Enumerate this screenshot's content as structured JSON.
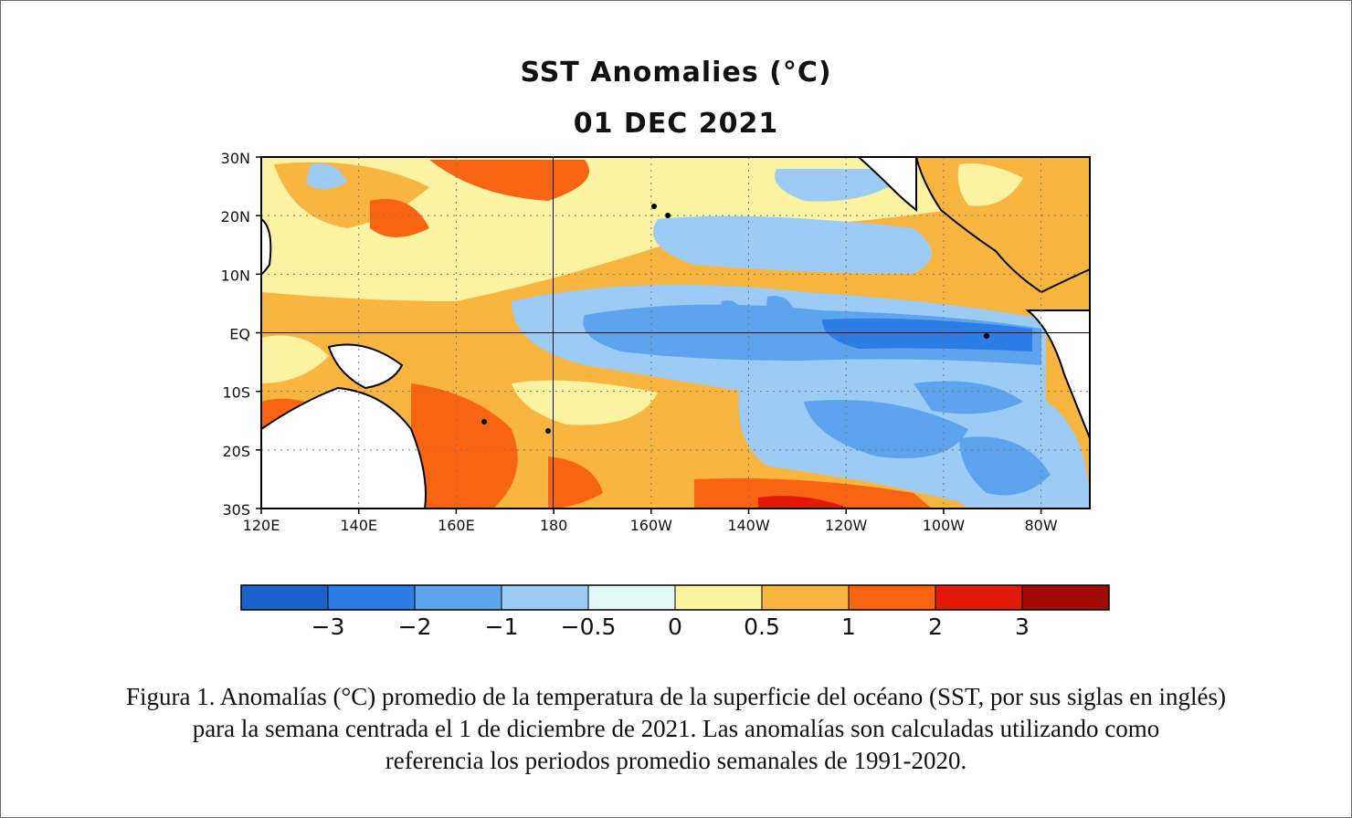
{
  "title": "SST Anomalies (°C)",
  "date": "01 DEC 2021",
  "map": {
    "lat_labels": [
      "30N",
      "20N",
      "10N",
      "EQ",
      "10S",
      "20S",
      "30S"
    ],
    "lon_labels": [
      "120E",
      "140E",
      "160E",
      "180",
      "160W",
      "140W",
      "120W",
      "100W",
      "80W"
    ],
    "lat_range": [
      -30,
      30
    ],
    "lon_range": [
      120,
      290
    ],
    "reference_lines": [
      "EQ",
      "180"
    ],
    "gridlines": "dotted"
  },
  "colorbar": {
    "labels": [
      "−3",
      "−2",
      "−1",
      "−0.5",
      "0",
      "0.5",
      "1",
      "2",
      "3"
    ],
    "colors": [
      "#1a61c9",
      "#2c7de5",
      "#5ea3ee",
      "#9ccbf6",
      "#e0f7f7",
      "#fbf2a2",
      "#f8b640",
      "#f86411",
      "#e21a0a",
      "#a20a05"
    ]
  },
  "caption": {
    "line1": "Figura 1. Anomalías (°C) promedio de la temperatura de la superficie del océano (SST, por sus siglas en inglés)",
    "line2": "para la semana centrada el 1 de diciembre de 2021. Las anomalías son calculadas utilizando como",
    "line3": "referencia los periodos promedio semanales de 1991-2020."
  }
}
